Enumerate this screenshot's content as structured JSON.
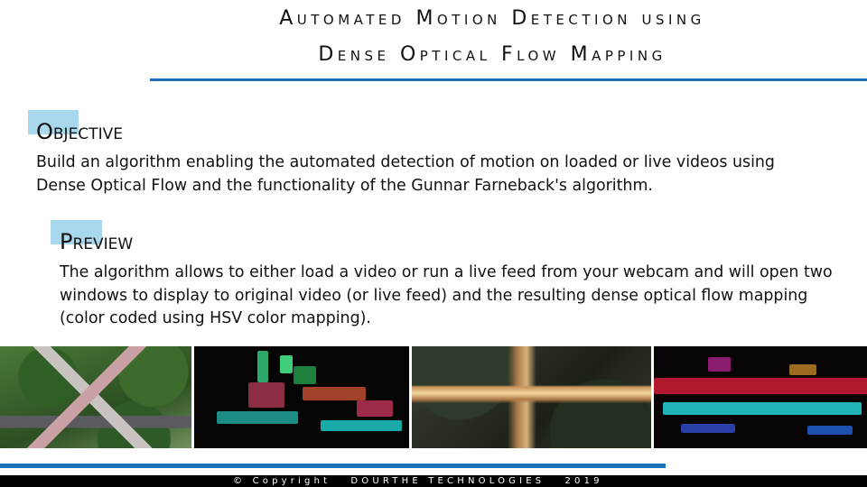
{
  "title": {
    "line1": "Automated Motion Detection using",
    "line2": "Dense Optical Flow Mapping"
  },
  "objective": {
    "heading": "Objective",
    "text": "Build an algorithm enabling the automated detection of motion on loaded or live videos using Dense Optical Flow and the functionality of the Gunnar Farneback's algorithm."
  },
  "preview": {
    "heading": "Preview",
    "text": "The algorithm allows to either load a video or run a live feed from your webcam and will open two windows to display to original video (or live feed) and the resulting dense optical flow mapping (color coded using HSV color mapping)."
  },
  "footer": {
    "text": "© Copyright   DOURTHE TECHNOLOGIES   2019"
  },
  "colors": {
    "accent_blue": "#1b6fb8",
    "heading_highlight": "#a9d8ee"
  }
}
